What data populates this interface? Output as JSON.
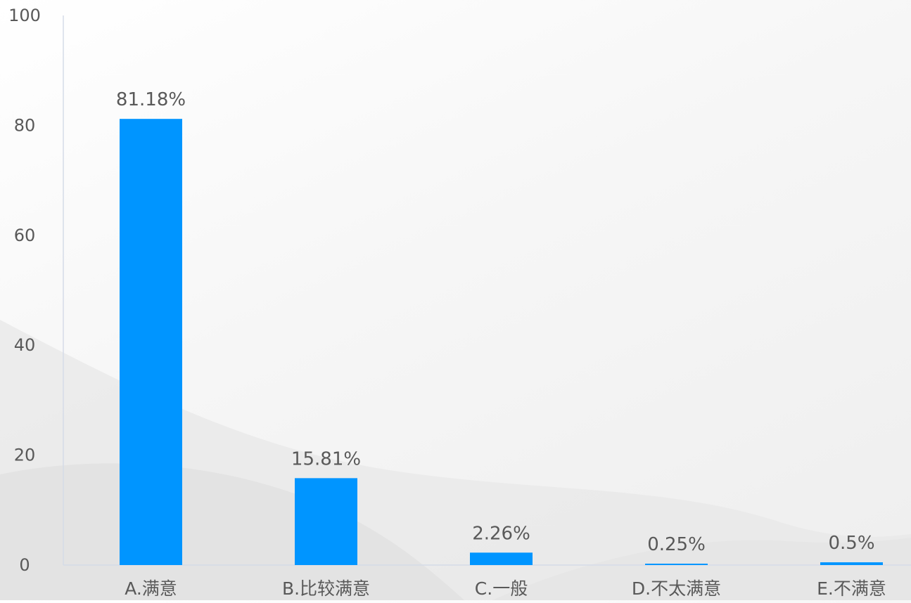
{
  "chart_data": {
    "type": "bar",
    "categories": [
      "A.满意",
      "B.比较满意",
      "C.一般",
      "D.不太满意",
      "E.不满意"
    ],
    "values": [
      81.18,
      15.81,
      2.26,
      0.25,
      0.5
    ],
    "data_labels": [
      "81.18%",
      "15.81%",
      "2.26%",
      "0.25%",
      "0.5%"
    ],
    "ylim": [
      0,
      100
    ],
    "yticks": [
      0,
      20,
      40,
      60,
      80,
      100
    ],
    "grid": false,
    "legend": "none"
  },
  "colors": {
    "bar": "#0095ff",
    "axis": "#d5dbe8",
    "text": "#595959"
  }
}
